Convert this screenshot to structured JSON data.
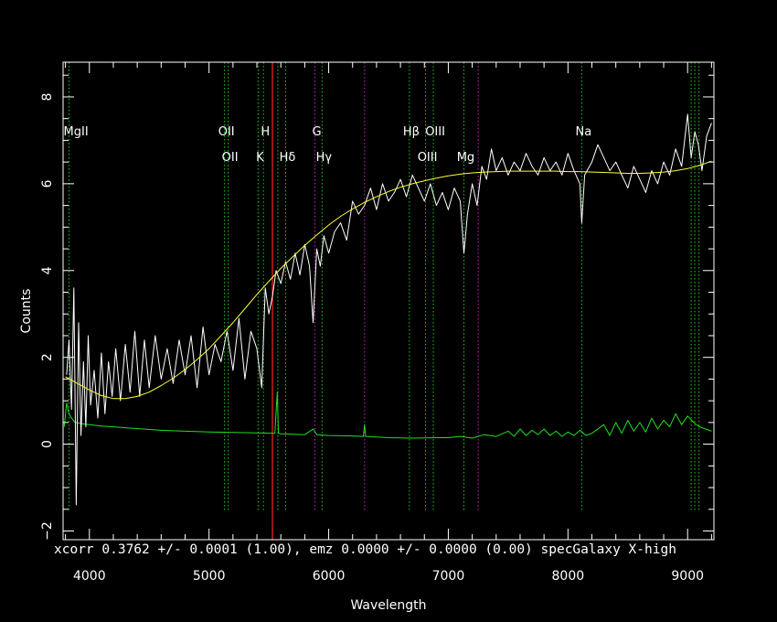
{
  "chart_data": {
    "type": "line",
    "xlabel": "Wavelength",
    "ylabel": "Counts",
    "xlim": [
      3780,
      9220
    ],
    "ylim": [
      -2.2,
      8.8
    ],
    "grid": false,
    "x_ticks": [
      4000,
      5000,
      6000,
      7000,
      8000,
      9000
    ],
    "y_ticks": [
      -2,
      0,
      2,
      4,
      6,
      8
    ],
    "annotation": "xcorr  0.3762 +/- 0.0001 (1.00), emz  0.0000 +/- 0.0000 (0.00) specGalaxy X-high",
    "colors": {
      "background": "#000000",
      "axes": "#ffffff",
      "spectrum": "#ffffff",
      "model": "#ffff33",
      "error": "#22dd22",
      "line_green": "#22cc22",
      "line_magenta": "#cc22cc",
      "line_red": "#ff2222"
    },
    "red_marker_x": 5530,
    "line_markers": [
      {
        "x": 3830,
        "color": "green",
        "label": "MgII",
        "row": 1
      },
      {
        "x": 5130,
        "color": "green",
        "label": "OII",
        "row": 1
      },
      {
        "x": 5160,
        "color": "green",
        "label": "OII",
        "row": 2
      },
      {
        "x": 5410,
        "color": "green",
        "label": "K",
        "row": 2
      },
      {
        "x": 5455,
        "color": "green",
        "label": "H",
        "row": 1
      },
      {
        "x": 5575,
        "color": "green",
        "label": "",
        "row": 0
      },
      {
        "x": 5640,
        "color": "green",
        "label": "Hδ",
        "row": 2
      },
      {
        "x": 5885,
        "color": "magenta",
        "label": "G",
        "row": 1
      },
      {
        "x": 5945,
        "color": "green",
        "label": "Hγ",
        "row": 2
      },
      {
        "x": 6300,
        "color": "magenta",
        "label": "",
        "row": 0
      },
      {
        "x": 6675,
        "color": "green",
        "label": "Hβ",
        "row": 1
      },
      {
        "x": 6810,
        "color": "green",
        "label": "OIII",
        "row": 2
      },
      {
        "x": 6875,
        "color": "green",
        "label": "OIII",
        "row": 1
      },
      {
        "x": 7130,
        "color": "green",
        "label": "Mg",
        "row": 2
      },
      {
        "x": 7250,
        "color": "magenta",
        "label": "",
        "row": 0
      },
      {
        "x": 8115,
        "color": "green",
        "label": "Na",
        "row": 1
      },
      {
        "x": 9030,
        "color": "green",
        "label": "",
        "row": 0
      },
      {
        "x": 9060,
        "color": "green",
        "label": "",
        "row": 0
      },
      {
        "x": 9095,
        "color": "green",
        "label": "",
        "row": 0
      }
    ],
    "series": [
      {
        "key": "spectrum",
        "x": [
          3810,
          3830,
          3850,
          3870,
          3890,
          3910,
          3930,
          3950,
          3970,
          3990,
          4010,
          4040,
          4070,
          4100,
          4130,
          4160,
          4190,
          4220,
          4260,
          4300,
          4340,
          4380,
          4420,
          4460,
          4500,
          4550,
          4600,
          4650,
          4700,
          4750,
          4800,
          4850,
          4900,
          4950,
          5000,
          5050,
          5100,
          5150,
          5200,
          5250,
          5300,
          5350,
          5400,
          5440,
          5470,
          5500,
          5530,
          5560,
          5600,
          5640,
          5680,
          5720,
          5760,
          5800,
          5840,
          5870,
          5900,
          5930,
          5960,
          6000,
          6050,
          6100,
          6150,
          6200,
          6250,
          6300,
          6350,
          6400,
          6450,
          6500,
          6550,
          6600,
          6650,
          6700,
          6750,
          6800,
          6850,
          6900,
          6950,
          7000,
          7050,
          7100,
          7130,
          7160,
          7200,
          7240,
          7280,
          7320,
          7360,
          7400,
          7450,
          7500,
          7550,
          7600,
          7650,
          7700,
          7750,
          7800,
          7850,
          7900,
          7950,
          8000,
          8050,
          8100,
          8115,
          8140,
          8200,
          8250,
          8300,
          8350,
          8400,
          8450,
          8500,
          8550,
          8600,
          8650,
          8700,
          8750,
          8800,
          8850,
          8900,
          8950,
          9000,
          9030,
          9060,
          9090,
          9120,
          9160,
          9200
        ],
        "y": [
          1.6,
          2.4,
          0.8,
          3.6,
          -1.4,
          2.8,
          0.2,
          1.9,
          0.4,
          2.5,
          0.9,
          1.7,
          0.6,
          2.1,
          0.7,
          1.9,
          1.1,
          2.2,
          1.0,
          2.3,
          1.2,
          2.6,
          1.1,
          2.4,
          1.3,
          2.5,
          1.5,
          2.2,
          1.4,
          2.4,
          1.6,
          2.5,
          1.3,
          2.7,
          1.6,
          2.3,
          1.9,
          2.6,
          1.7,
          2.9,
          1.5,
          2.6,
          2.2,
          1.3,
          3.6,
          3.0,
          3.4,
          4.0,
          3.7,
          4.2,
          3.8,
          4.4,
          3.9,
          4.6,
          4.1,
          2.8,
          4.5,
          4.1,
          4.8,
          4.4,
          4.9,
          5.1,
          4.7,
          5.6,
          5.3,
          5.5,
          5.9,
          5.4,
          6.0,
          5.6,
          5.8,
          6.1,
          5.7,
          6.2,
          5.9,
          5.6,
          6.0,
          5.5,
          5.8,
          5.4,
          5.9,
          5.6,
          4.4,
          5.3,
          6.0,
          5.5,
          6.4,
          6.1,
          6.8,
          6.3,
          6.6,
          6.2,
          6.5,
          6.3,
          6.7,
          6.4,
          6.2,
          6.6,
          6.3,
          6.5,
          6.2,
          6.7,
          6.3,
          6.0,
          5.1,
          6.2,
          6.5,
          6.9,
          6.6,
          6.3,
          6.5,
          6.2,
          5.9,
          6.4,
          6.1,
          5.8,
          6.3,
          6.0,
          6.5,
          6.2,
          6.8,
          6.4,
          7.6,
          6.6,
          7.2,
          6.9,
          6.3,
          7.1,
          7.4
        ]
      },
      {
        "key": "model",
        "x": [
          3800,
          3900,
          4000,
          4100,
          4200,
          4300,
          4400,
          4500,
          4600,
          4700,
          4800,
          4900,
          5000,
          5100,
          5200,
          5300,
          5400,
          5500,
          5600,
          5700,
          5800,
          5900,
          6000,
          6100,
          6200,
          6300,
          6400,
          6500,
          6600,
          6700,
          6800,
          6900,
          7000,
          7100,
          7200,
          7300,
          7400,
          7500,
          7600,
          7700,
          7800,
          7900,
          8000,
          8100,
          8200,
          8300,
          8400,
          8500,
          8600,
          8700,
          8800,
          8900,
          9000,
          9100,
          9200
        ],
        "y": [
          1.55,
          1.4,
          1.25,
          1.12,
          1.05,
          1.05,
          1.1,
          1.2,
          1.35,
          1.52,
          1.72,
          1.95,
          2.2,
          2.5,
          2.8,
          3.12,
          3.45,
          3.75,
          4.05,
          4.32,
          4.58,
          4.82,
          5.05,
          5.25,
          5.42,
          5.57,
          5.7,
          5.82,
          5.92,
          6.0,
          6.07,
          6.13,
          6.18,
          6.22,
          6.25,
          6.27,
          6.28,
          6.29,
          6.29,
          6.29,
          6.29,
          6.29,
          6.28,
          6.28,
          6.27,
          6.26,
          6.25,
          6.24,
          6.24,
          6.25,
          6.27,
          6.3,
          6.35,
          6.42,
          6.52
        ]
      },
      {
        "key": "error",
        "x": [
          3790,
          3810,
          3830,
          3850,
          3880,
          3920,
          3960,
          4000,
          4100,
          4200,
          4300,
          4400,
          4500,
          4600,
          4800,
          5000,
          5200,
          5400,
          5550,
          5570,
          5580,
          5600,
          5800,
          5870,
          5900,
          6000,
          6200,
          6290,
          6300,
          6310,
          6500,
          6700,
          6900,
          7000,
          7100,
          7200,
          7300,
          7400,
          7500,
          7550,
          7600,
          7650,
          7700,
          7750,
          7800,
          7850,
          7900,
          7950,
          8000,
          8050,
          8100,
          8150,
          8200,
          8300,
          8350,
          8400,
          8450,
          8500,
          8550,
          8600,
          8650,
          8700,
          8750,
          8800,
          8850,
          8900,
          8950,
          9000,
          9050,
          9100,
          9150,
          9200
        ],
        "y": [
          0.4,
          0.95,
          0.7,
          0.6,
          0.5,
          0.48,
          0.46,
          0.45,
          0.42,
          0.4,
          0.38,
          0.36,
          0.34,
          0.32,
          0.3,
          0.28,
          0.27,
          0.26,
          0.25,
          1.2,
          0.25,
          0.24,
          0.22,
          0.35,
          0.22,
          0.2,
          0.19,
          0.18,
          0.45,
          0.18,
          0.15,
          0.14,
          0.15,
          0.15,
          0.18,
          0.14,
          0.22,
          0.18,
          0.3,
          0.18,
          0.35,
          0.2,
          0.32,
          0.22,
          0.35,
          0.2,
          0.3,
          0.18,
          0.28,
          0.2,
          0.32,
          0.2,
          0.25,
          0.45,
          0.2,
          0.5,
          0.25,
          0.55,
          0.3,
          0.5,
          0.28,
          0.6,
          0.35,
          0.55,
          0.4,
          0.7,
          0.45,
          0.65,
          0.5,
          0.4,
          0.35,
          0.3
        ]
      }
    ]
  }
}
